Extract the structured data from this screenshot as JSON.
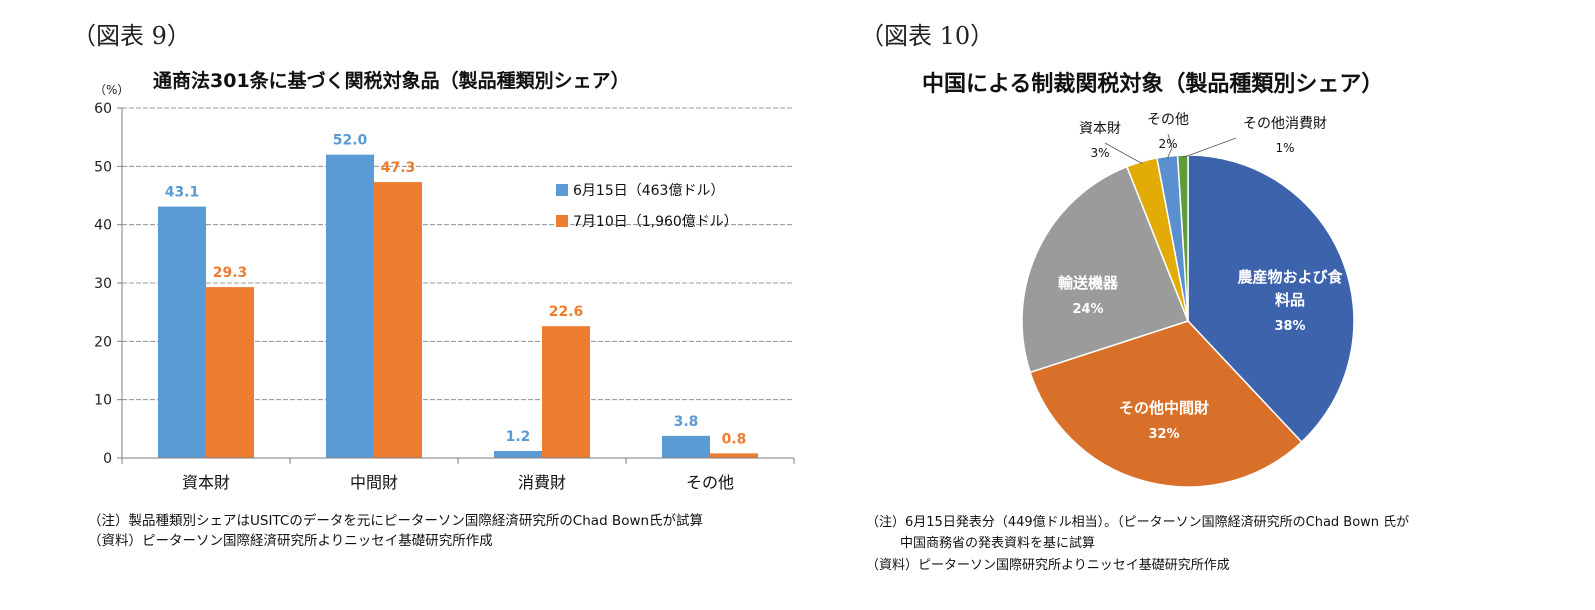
{
  "figure9": {
    "label": "（図表 9）",
    "title": "通商法301条に基づく関税対象品（製品種類別シェア）",
    "unit": "（%）",
    "notes": [
      "（注）製品種類別シェアはUSITCのデータを元にピーターソン国際経済研究所のChad Bown氏が試算",
      "（資料）ピーターソン国際経済研究所よりニッセイ基礎研究所作成"
    ]
  },
  "figure10": {
    "label": "（図表 10）",
    "title": "中国による制裁関税対象（製品種類別シェア）",
    "notes": [
      "（注）6月15日発表分（449億ドル相当）。（ピーターソン国際経済研究所のChad Bown 氏が",
      "中国商務省の発表資料を基に試算",
      "（資料）ピーターソン国際研究所よりニッセイ基礎研究所作成"
    ]
  },
  "chart_data": [
    {
      "type": "bar",
      "title": "通商法301条に基づく関税対象品（製品種類別シェア）",
      "ylabel": "（%）",
      "categories": [
        "資本財",
        "中間財",
        "消費財",
        "その他"
      ],
      "series": [
        {
          "name": "6月15日（463億ドル）",
          "values": [
            43.1,
            52.0,
            1.2,
            3.8
          ],
          "labels": [
            "43.1",
            "52.0",
            "1.2",
            "3.8"
          ],
          "color": "#5b9bd5"
        },
        {
          "name": "7月10日（1,960億ドル）",
          "values": [
            29.3,
            47.3,
            22.6,
            0.8
          ],
          "labels": [
            "29.3",
            "47.3",
            "22.6",
            "0.8"
          ],
          "color": "#ed7d31"
        }
      ],
      "yticks": [
        "0",
        "10",
        "20",
        "30",
        "40",
        "50",
        "60"
      ],
      "ylim": [
        0,
        60
      ],
      "grid": true,
      "legend": "right"
    },
    {
      "type": "pie",
      "title": "中国による制裁関税対象（製品種類別シェア）",
      "slices": [
        {
          "label": "農産物および食料品",
          "label_lines": [
            "農産物および食",
            "料品"
          ],
          "value": 38,
          "value_label": "38%",
          "color": "#3c63ab",
          "label_inside": true
        },
        {
          "label": "その他中間財",
          "label_lines": [
            "その他中間財"
          ],
          "value": 32,
          "value_label": "32%",
          "color": "#d8702a",
          "label_inside": true
        },
        {
          "label": "輸送機器",
          "label_lines": [
            "輸送機器"
          ],
          "value": 24,
          "value_label": "24%",
          "color": "#9b9b9b",
          "label_inside": true
        },
        {
          "label": "資本財",
          "label_lines": [
            "資本財"
          ],
          "value": 3,
          "value_label": "3%",
          "color": "#e3ab06",
          "label_inside": false
        },
        {
          "label": "その他",
          "label_lines": [
            "その他"
          ],
          "value": 2,
          "value_label": "2%",
          "color": "#5a8fd0",
          "label_inside": false
        },
        {
          "label": "その他消費財",
          "label_lines": [
            "その他消費財"
          ],
          "value": 1,
          "value_label": "1%",
          "color": "#5f9c3a",
          "label_inside": false
        }
      ]
    }
  ]
}
